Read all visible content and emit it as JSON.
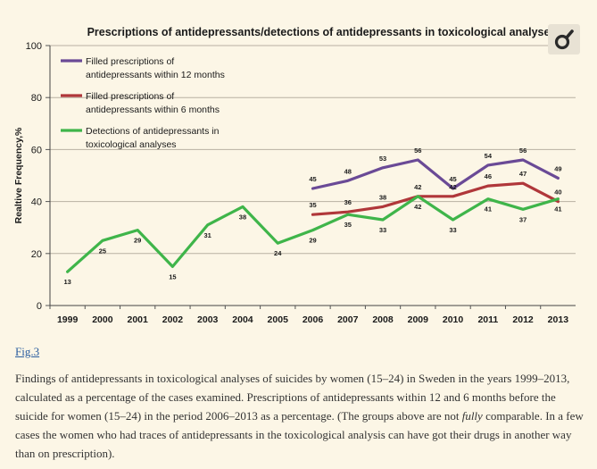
{
  "chart_data": {
    "type": "line",
    "title": "Prescriptions of antidepressants/detections of antidepressants in toxicological analyses",
    "ylabel": "Realtive Frequency,%",
    "xlabel": "",
    "ylim": [
      0,
      100
    ],
    "yticks": [
      "0",
      "20",
      "40",
      "60",
      "80",
      "100"
    ],
    "categories": [
      "1999",
      "2000",
      "2001",
      "2002",
      "2003",
      "2004",
      "2005",
      "2006",
      "2007",
      "2008",
      "2009",
      "2010",
      "2011",
      "2012",
      "2013"
    ],
    "grid": true,
    "legend_position": "top-left",
    "series": [
      {
        "name_lines": [
          "Filled prescriptions of",
          "antidepressants within 12 months"
        ],
        "color": "#6a4a96",
        "values": [
          null,
          null,
          null,
          null,
          null,
          null,
          null,
          45,
          48,
          53,
          56,
          45,
          54,
          56,
          49
        ]
      },
      {
        "name_lines": [
          "Filled prescriptions of",
          "antidepressants within 6 months"
        ],
        "color": "#b0373a",
        "values": [
          null,
          null,
          null,
          null,
          null,
          null,
          null,
          35,
          36,
          38,
          42,
          42,
          46,
          47,
          40
        ]
      },
      {
        "name_lines": [
          "Detections of antidepressants in",
          "toxicological analyses"
        ],
        "color": "#3fb54a",
        "values": [
          13,
          25,
          29,
          15,
          31,
          38,
          24,
          29,
          35,
          33,
          42,
          33,
          41,
          37,
          41
        ]
      }
    ]
  },
  "figure": {
    "link_text": "Fig.3",
    "caption_before": "Findings of antidepressants in toxicological analyses of suicides by women (15–24) in Sweden in the years 1999–2013, calculated as a percentage of the cases examined. Prescriptions of antidepressants within 12 and 6 months before the suicide for women (15–24) in the period 2006–2013 as a percentage. (The groups above are not ",
    "caption_emphasis": "fully",
    "caption_after": " comparable. In a few cases the women who had traces of antidepressants in the toxicological analysis can have got their drugs in another way than on prescription)."
  },
  "toolbar": {
    "magnify_icon": "magnify-icon"
  }
}
